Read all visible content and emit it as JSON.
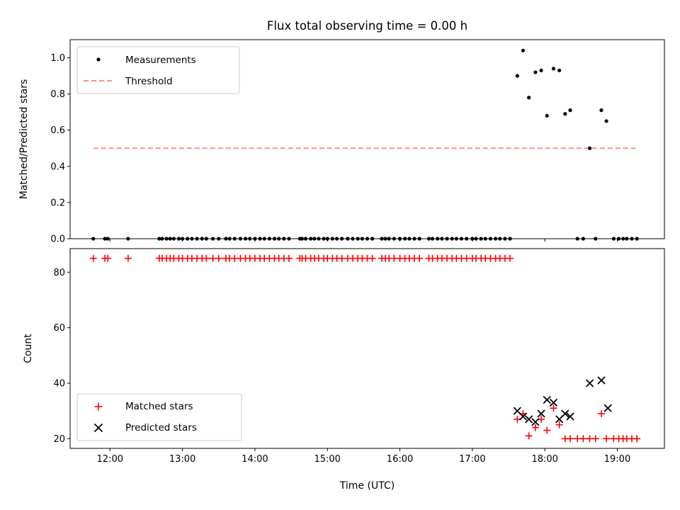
{
  "chart_data": [
    {
      "type": "scatter",
      "title": "Flux total observing time = 0.00 h",
      "xlabel": "",
      "ylabel": "Matched/Predicted stars",
      "xlim": [
        11.45,
        19.65
      ],
      "ylim": [
        0.0,
        1.1
      ],
      "yticks": [
        0.0,
        0.2,
        0.4,
        0.6,
        0.8,
        1.0
      ],
      "ytick_labels": [
        "0.0",
        "0.2",
        "0.4",
        "0.6",
        "0.8",
        "1.0"
      ],
      "grid": false,
      "legend_position": "top-left",
      "threshold": {
        "name": "Threshold",
        "y": 0.5,
        "x_range": [
          11.77,
          19.25
        ],
        "color": "#ff7f7f",
        "style": "dashed"
      },
      "series": [
        {
          "name": "Measurements",
          "color": "#000000",
          "marker": "dot",
          "x": [
            11.77,
            11.93,
            11.97,
            12.25,
            12.68,
            12.72,
            12.78,
            12.83,
            12.88,
            12.95,
            13.0,
            13.07,
            13.13,
            13.2,
            13.27,
            13.33,
            13.42,
            13.5,
            13.6,
            13.65,
            13.72,
            13.8,
            13.87,
            13.93,
            14.0,
            14.07,
            14.13,
            14.2,
            14.27,
            14.33,
            14.4,
            14.47,
            14.62,
            14.65,
            14.7,
            14.77,
            14.82,
            14.88,
            14.95,
            15.0,
            15.07,
            15.13,
            15.2,
            15.28,
            15.35,
            15.42,
            15.48,
            15.55,
            15.62,
            15.75,
            15.8,
            15.85,
            15.92,
            16.0,
            16.07,
            16.13,
            16.2,
            16.27,
            16.4,
            16.45,
            16.52,
            16.58,
            16.65,
            16.72,
            16.78,
            16.85,
            16.92,
            17.0,
            17.05,
            17.12,
            17.18,
            17.25,
            17.32,
            17.38,
            17.45,
            17.52,
            17.62,
            17.7,
            17.78,
            17.87,
            17.95,
            18.03,
            18.12,
            18.2,
            18.28,
            18.35,
            18.45,
            18.53,
            18.62,
            18.7,
            18.78,
            18.85,
            18.95,
            19.02,
            19.08,
            19.13,
            19.2,
            19.27
          ],
          "y": [
            0,
            0,
            0,
            0,
            0,
            0,
            0,
            0,
            0,
            0,
            0,
            0,
            0,
            0,
            0,
            0,
            0,
            0,
            0,
            0,
            0,
            0,
            0,
            0,
            0,
            0,
            0,
            0,
            0,
            0,
            0,
            0,
            0,
            0,
            0,
            0,
            0,
            0,
            0,
            0,
            0,
            0,
            0,
            0,
            0,
            0,
            0,
            0,
            0,
            0,
            0,
            0,
            0,
            0,
            0,
            0,
            0,
            0,
            0,
            0,
            0,
            0,
            0,
            0,
            0,
            0,
            0,
            0,
            0,
            0,
            0,
            0,
            0,
            0,
            0,
            0,
            0.9,
            1.04,
            0.78,
            0.92,
            0.93,
            0.68,
            0.94,
            0.93,
            0.69,
            0.71,
            0,
            0,
            0.5,
            0,
            0.71,
            0.65,
            0,
            0,
            0,
            0,
            0,
            0
          ]
        }
      ]
    },
    {
      "type": "scatter",
      "title": "",
      "xlabel": "Time (UTC)",
      "ylabel": "Count",
      "xlim": [
        11.45,
        19.65
      ],
      "ylim": [
        16.5,
        88.5
      ],
      "xticks": [
        12,
        13,
        14,
        15,
        16,
        17,
        18,
        19
      ],
      "xtick_labels": [
        "12:00",
        "13:00",
        "14:00",
        "15:00",
        "16:00",
        "17:00",
        "18:00",
        "19:00"
      ],
      "yticks": [
        20,
        40,
        60,
        80
      ],
      "ytick_labels": [
        "20",
        "40",
        "60",
        "80"
      ],
      "grid": false,
      "legend_position": "bottom-left",
      "series": [
        {
          "name": "Matched stars",
          "color": "#ff0000",
          "marker": "plus",
          "x": [
            11.77,
            11.93,
            11.97,
            12.25,
            12.68,
            12.72,
            12.78,
            12.83,
            12.88,
            12.95,
            13.0,
            13.07,
            13.13,
            13.2,
            13.27,
            13.33,
            13.42,
            13.5,
            13.6,
            13.65,
            13.72,
            13.8,
            13.87,
            13.93,
            14.0,
            14.07,
            14.13,
            14.2,
            14.27,
            14.33,
            14.4,
            14.47,
            14.62,
            14.65,
            14.7,
            14.77,
            14.82,
            14.88,
            14.95,
            15.0,
            15.07,
            15.13,
            15.2,
            15.28,
            15.35,
            15.42,
            15.48,
            15.55,
            15.62,
            15.75,
            15.8,
            15.85,
            15.92,
            16.0,
            16.07,
            16.13,
            16.2,
            16.27,
            16.4,
            16.45,
            16.52,
            16.58,
            16.65,
            16.72,
            16.78,
            16.85,
            16.92,
            17.0,
            17.05,
            17.12,
            17.18,
            17.25,
            17.32,
            17.38,
            17.45,
            17.52,
            17.62,
            17.7,
            17.78,
            17.87,
            17.95,
            18.03,
            18.12,
            18.2,
            18.28,
            18.35,
            18.45,
            18.53,
            18.62,
            18.7,
            18.78,
            18.85,
            18.95,
            19.02,
            19.08,
            19.13,
            19.2,
            19.27
          ],
          "y": [
            85,
            85,
            85,
            85,
            85,
            85,
            85,
            85,
            85,
            85,
            85,
            85,
            85,
            85,
            85,
            85,
            85,
            85,
            85,
            85,
            85,
            85,
            85,
            85,
            85,
            85,
            85,
            85,
            85,
            85,
            85,
            85,
            85,
            85,
            85,
            85,
            85,
            85,
            85,
            85,
            85,
            85,
            85,
            85,
            85,
            85,
            85,
            85,
            85,
            85,
            85,
            85,
            85,
            85,
            85,
            85,
            85,
            85,
            85,
            85,
            85,
            85,
            85,
            85,
            85,
            85,
            85,
            85,
            85,
            85,
            85,
            85,
            85,
            85,
            85,
            85,
            27,
            29,
            21,
            24,
            27,
            23,
            31,
            25,
            20,
            20,
            20,
            20,
            20,
            20,
            29,
            20,
            20,
            20,
            20,
            20,
            20,
            20
          ]
        },
        {
          "name": "Predicted stars",
          "color": "#000000",
          "marker": "x",
          "x": [
            17.62,
            17.7,
            17.78,
            17.87,
            17.95,
            18.03,
            18.12,
            18.2,
            18.28,
            18.35,
            18.62,
            18.78,
            18.87
          ],
          "y": [
            30,
            28,
            27,
            26,
            29,
            34,
            33,
            27,
            29,
            28,
            40,
            41,
            31
          ]
        }
      ]
    }
  ]
}
